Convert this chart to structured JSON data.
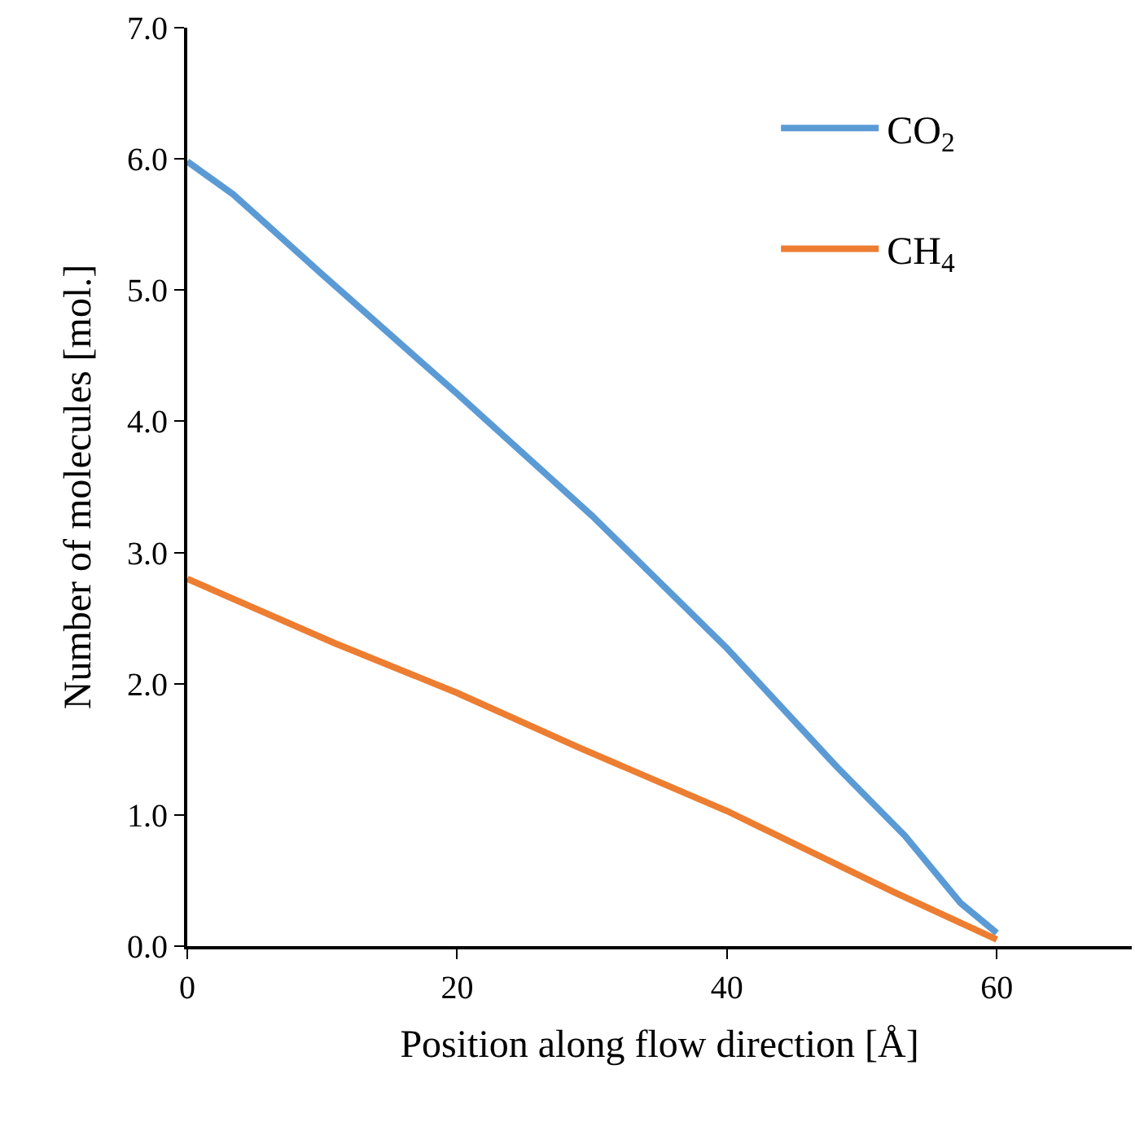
{
  "chart_data": {
    "type": "line",
    "xlabel": "Position along flow direction [Å]",
    "ylabel": "Number of molecules [mol.]",
    "xlim": [
      0,
      70
    ],
    "xticks": [
      0,
      20,
      40,
      60
    ],
    "ylim": [
      0,
      7
    ],
    "yticks": [
      {
        "value": 0,
        "label": "0.0"
      },
      {
        "value": 1,
        "label": "1.0"
      },
      {
        "value": 2,
        "label": "2.0"
      },
      {
        "value": 3,
        "label": "3.0"
      },
      {
        "value": 4,
        "label": "4.0"
      },
      {
        "value": 5,
        "label": "5.0"
      },
      {
        "value": 6,
        "label": "6.0"
      },
      {
        "value": 7,
        "label": "7.0"
      }
    ],
    "legend": "top right",
    "marker": "none",
    "line_style": "solid",
    "series": [
      {
        "name": "CO$_{2}$",
        "color": "#5b9bd5",
        "x": [
          0,
          3.4,
          10,
          20,
          30,
          40,
          48.2,
          53.2,
          57.3,
          60
        ],
        "values": [
          5.98,
          5.73,
          5.12,
          4.21,
          3.28,
          2.27,
          1.36,
          0.84,
          0.33,
          0.1
        ]
      },
      {
        "name": "CH$_{4}$",
        "color": "#ed7d31",
        "x": [
          0,
          10.9,
          20,
          29.1,
          40,
          48.2,
          52.4,
          60
        ],
        "values": [
          2.8,
          2.31,
          1.93,
          1.51,
          1.03,
          0.62,
          0.41,
          0.05
        ]
      }
    ]
  }
}
